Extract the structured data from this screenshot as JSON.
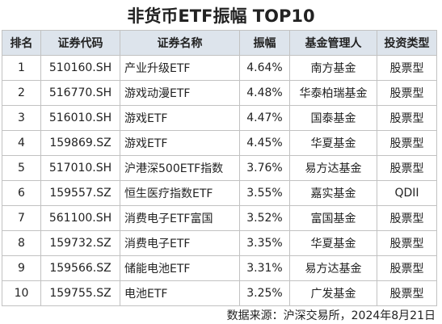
{
  "header": {
    "title": "非货币ETF振幅 TOP10"
  },
  "table": {
    "headers": [
      "排名",
      "证券代码",
      "证券名称",
      "振幅",
      "基金管理人",
      "投资类型"
    ],
    "rows": [
      [
        "1",
        "510160.SH",
        "产业升级ETF",
        "4.64%",
        "南方基金",
        "股票型"
      ],
      [
        "2",
        "516770.SH",
        "游戏动漫ETF",
        "4.48%",
        "华泰柏瑞基金",
        "股票型"
      ],
      [
        "3",
        "516010.SH",
        "游戏ETF",
        "4.47%",
        "国泰基金",
        "股票型"
      ],
      [
        "4",
        "159869.SZ",
        "游戏ETF",
        "4.45%",
        "华夏基金",
        "股票型"
      ],
      [
        "5",
        "517010.SH",
        "沪港深500ETF指数",
        "3.76%",
        "易方达基金",
        "股票型"
      ],
      [
        "6",
        "159557.SZ",
        "恒生医疗指数ETF",
        "3.55%",
        "嘉实基金",
        "QDII"
      ],
      [
        "7",
        "561100.SH",
        "消费电子ETF富国",
        "3.52%",
        "富国基金",
        "股票型"
      ],
      [
        "8",
        "159732.SZ",
        "消费电子ETF",
        "3.35%",
        "华夏基金",
        "股票型"
      ],
      [
        "9",
        "159566.SZ",
        "储能电池ETF",
        "3.31%",
        "易方达基金",
        "股票型"
      ],
      [
        "10",
        "159755.SZ",
        "电池ETF",
        "3.25%",
        "广发基金",
        "股票型"
      ]
    ]
  },
  "footer": {
    "source": "数据来源：沪深交易所，2024年8月21日"
  }
}
